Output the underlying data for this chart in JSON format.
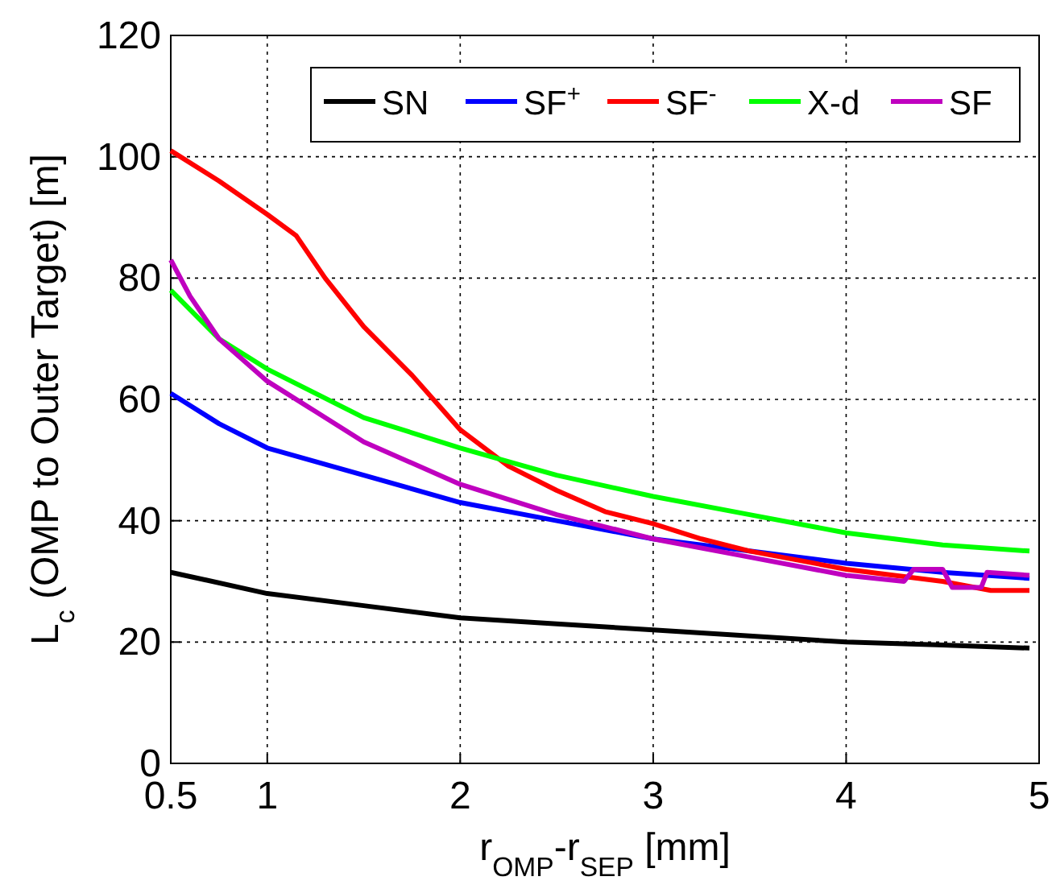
{
  "chart_data": {
    "type": "line",
    "xlabel": "r$_{OMP}$-r$_{SEP}$ [mm]",
    "ylabel": "L$_{c}$ (OMP to Outer Target) [m]",
    "xlim": [
      0.5,
      5
    ],
    "xticks": [
      0.5,
      1,
      2,
      3,
      4,
      5
    ],
    "ylim": [
      0,
      120
    ],
    "yticks": [
      0,
      20,
      40,
      60,
      80,
      100,
      120
    ],
    "grid": true,
    "legend": "top right",
    "line_style": "solid",
    "series": [
      {
        "name": "SN",
        "color": "#000000",
        "x": [
          0.5,
          1,
          1.5,
          2,
          2.5,
          3,
          3.5,
          4,
          4.5,
          4.95
        ],
        "values": [
          31.5,
          28,
          26,
          24,
          23,
          22,
          21,
          20,
          19.5,
          19
        ]
      },
      {
        "name": "SF$^{+}$",
        "color": "#0000ff",
        "x": [
          0.5,
          0.75,
          1,
          1.5,
          2,
          2.5,
          3,
          3.5,
          4,
          4.5,
          4.95
        ],
        "values": [
          61,
          56,
          52,
          47.5,
          43,
          40,
          37,
          35,
          33,
          31.5,
          30.5
        ]
      },
      {
        "name": "SF$^{-}$",
        "color": "#ff0000",
        "x": [
          0.5,
          0.75,
          1,
          1.15,
          1.3,
          1.5,
          1.75,
          2,
          2.25,
          2.5,
          2.75,
          3,
          3.25,
          3.5,
          4,
          4.25,
          4.5,
          4.75,
          4.95
        ],
        "values": [
          101,
          96,
          90.5,
          87,
          80,
          72,
          64,
          55,
          49,
          45,
          41.5,
          39.5,
          37,
          35,
          32,
          31,
          30,
          28.5,
          28.5
        ]
      },
      {
        "name": "X-d",
        "color": "#00ff00",
        "x": [
          0.5,
          0.75,
          1,
          1.5,
          2,
          2.5,
          3,
          3.5,
          4,
          4.5,
          4.95
        ],
        "values": [
          78,
          70,
          65,
          57,
          52,
          47.5,
          44,
          41,
          38,
          36,
          35
        ]
      },
      {
        "name": "SF",
        "color": "#bf00bf",
        "x": [
          0.5,
          0.6,
          0.75,
          1,
          1.25,
          1.5,
          2,
          2.5,
          3,
          3.5,
          4,
          4.3,
          4.35,
          4.5,
          4.55,
          4.7,
          4.73,
          4.95
        ],
        "values": [
          83,
          77,
          70,
          63,
          58,
          53,
          46,
          41,
          37,
          34,
          31,
          30,
          32,
          32,
          29,
          29,
          31.5,
          31
        ]
      }
    ]
  }
}
